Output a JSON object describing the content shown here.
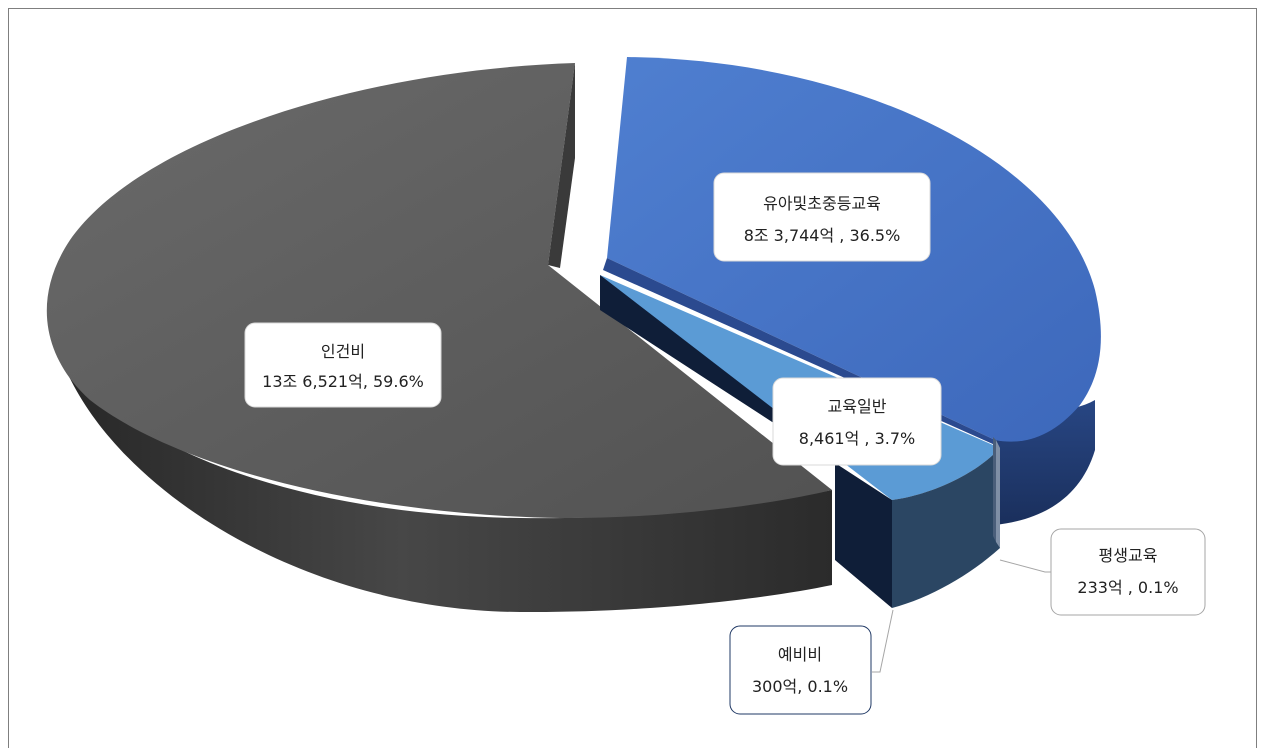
{
  "chart_data": {
    "type": "pie",
    "title": "",
    "unit": "억",
    "style": "3d-exploded",
    "slices": [
      {
        "name": "인건비",
        "value_text": "13조 6,521억",
        "percent_text": "59.6%",
        "value": 136521,
        "percent": 59.6,
        "color": "#5a5a5a"
      },
      {
        "name": "유아및초중등교육",
        "value_text": "8조 3,744억",
        "percent_text": "36.5%",
        "value": 83744,
        "percent": 36.5,
        "color": "#4472c4"
      },
      {
        "name": "교육일반",
        "value_text": "8,461억",
        "percent_text": "3.7%",
        "value": 8461,
        "percent": 3.7,
        "color": "#5b9bd5"
      },
      {
        "name": "평생교육",
        "value_text": "233억",
        "percent_text": "0.1%",
        "value": 233,
        "percent": 0.1,
        "color": "#2f4f6f"
      },
      {
        "name": "예비비",
        "value_text": "300억",
        "percent_text": "0.1%",
        "value": 300,
        "percent": 0.1,
        "color": "#1f3864"
      }
    ],
    "labels": {
      "personnel": {
        "line1": "인건비",
        "line2": "13조 6,521억, 59.6%"
      },
      "k12": {
        "line1": "유아및초중등교육",
        "line2": "8조 3,744억 , 36.5%"
      },
      "general": {
        "line1": "교육일반",
        "line2": "8,461억 , 3.7%"
      },
      "lifelong": {
        "line1": "평생교육",
        "line2": "233억 , 0.1%"
      },
      "reserve": {
        "line1": "예비비",
        "line2": "300억, 0.1%"
      }
    }
  }
}
